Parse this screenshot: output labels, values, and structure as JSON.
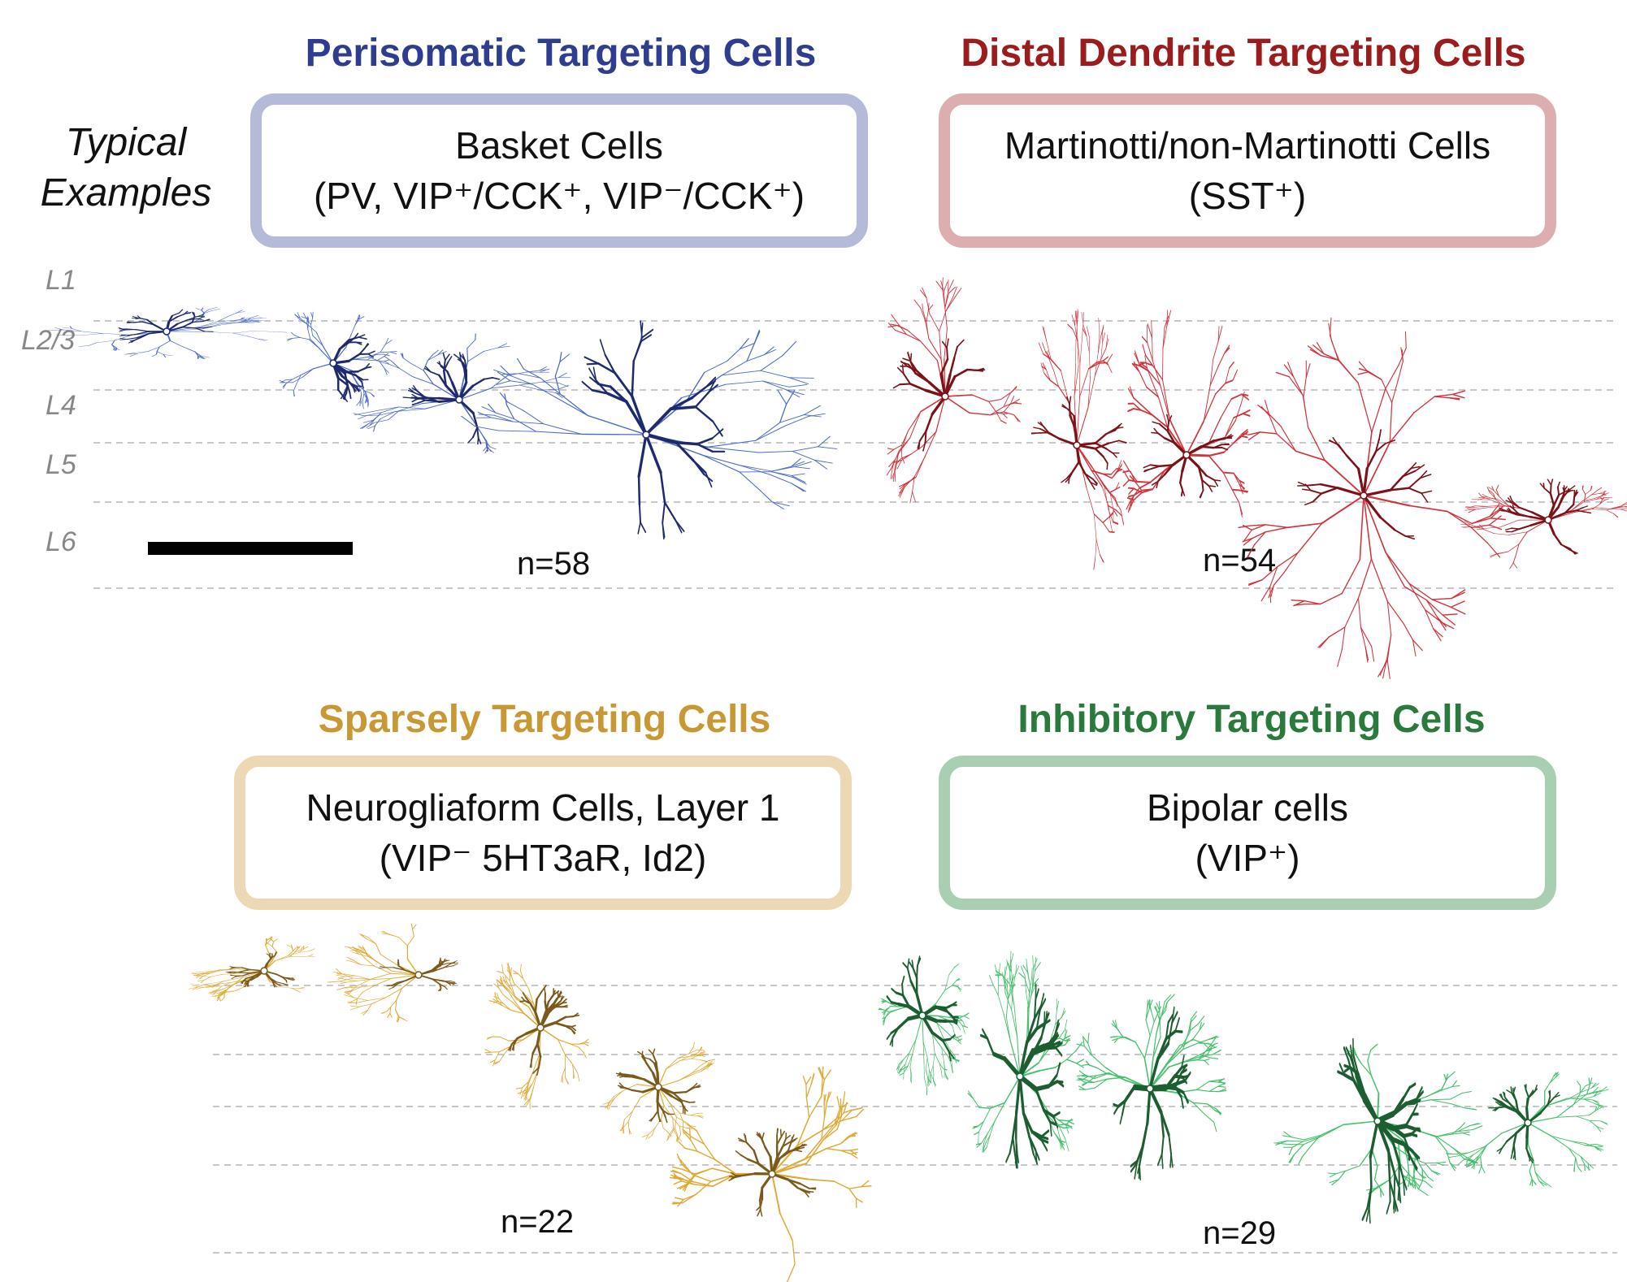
{
  "typical_examples": {
    "line1": "Typical",
    "line2": "Examples"
  },
  "layers": [
    "L1",
    "L2/3",
    "L4",
    "L5",
    "L6"
  ],
  "groups": [
    {
      "key": "perisomatic",
      "title": "Perisomatic Targeting Cells",
      "box_line1": "Basket Cells",
      "box_line2": "(PV, VIP⁺/CCK⁺, VIP⁻/CCK⁺)",
      "n": "n=58",
      "title_color": "#2e3d8f",
      "border_color": "#b4bad8",
      "dark_color": "#1f2a6e",
      "light_color": "#4a68c8"
    },
    {
      "key": "distal",
      "title": "Distal Dendrite Targeting Cells",
      "box_line1": "Martinotti/non-Martinotti Cells",
      "box_line2": "(SST⁺)",
      "n": "n=54",
      "title_color": "#9b1c1c",
      "border_color": "#dcaeb0",
      "dark_color": "#7a1218",
      "light_color": "#d2333c"
    },
    {
      "key": "sparse",
      "title": "Sparsely Targeting Cells",
      "box_line1": "Neurogliaform Cells, Layer 1",
      "box_line2": "(VIP⁻ 5HT3aR, Id2)",
      "n": "n=22",
      "title_color": "#c89834",
      "border_color": "#ecd9b4",
      "dark_color": "#7a5a1c",
      "light_color": "#e0a935"
    },
    {
      "key": "inhibitory",
      "title": "Inhibitory Targeting Cells",
      "box_line1": "Bipolar cells",
      "box_line2": "(VIP⁺)",
      "n": "n=29",
      "title_color": "#2a7a3e",
      "border_color": "#a9cfb2",
      "dark_color": "#1d5e30",
      "light_color": "#46c06a"
    }
  ]
}
